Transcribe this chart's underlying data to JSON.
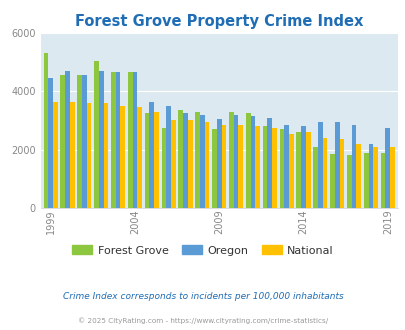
{
  "title": "Forest Grove Property Crime Index",
  "years": [
    1999,
    2000,
    2001,
    2002,
    2003,
    2004,
    2005,
    2006,
    2007,
    2008,
    2009,
    2010,
    2011,
    2012,
    2013,
    2014,
    2015,
    2016,
    2017,
    2018,
    2019
  ],
  "forest_grove": [
    5300,
    4550,
    4550,
    5050,
    4650,
    4650,
    3250,
    2750,
    3350,
    3300,
    2700,
    3300,
    3250,
    2800,
    2700,
    2600,
    2100,
    1850,
    1800,
    1900,
    1900
  ],
  "oregon": [
    4450,
    4700,
    4550,
    4700,
    4650,
    4650,
    3650,
    3500,
    3250,
    3200,
    3050,
    3200,
    3150,
    3100,
    2850,
    2800,
    2950,
    2950,
    2850,
    2200,
    2750
  ],
  "national": [
    3650,
    3650,
    3600,
    3600,
    3500,
    3450,
    3300,
    3000,
    3000,
    2950,
    2850,
    2850,
    2800,
    2750,
    2550,
    2600,
    2400,
    2350,
    2200,
    2100,
    2100
  ],
  "fg_color": "#8dc63f",
  "or_color": "#5b9bd5",
  "na_color": "#ffc000",
  "plot_bg_color": "#dce9f0",
  "title_color": "#1f6db5",
  "tick_color": "#888888",
  "note_text": "Crime Index corresponds to incidents per 100,000 inhabitants",
  "note_color": "#1f6db5",
  "copy_text": "© 2025 CityRating.com - https://www.cityrating.com/crime-statistics/",
  "copy_color": "#999999",
  "ylim": [
    0,
    6000
  ],
  "yticks": [
    0,
    2000,
    4000,
    6000
  ],
  "bar_width": 0.28,
  "tick_years": [
    1999,
    2004,
    2009,
    2014,
    2019
  ]
}
